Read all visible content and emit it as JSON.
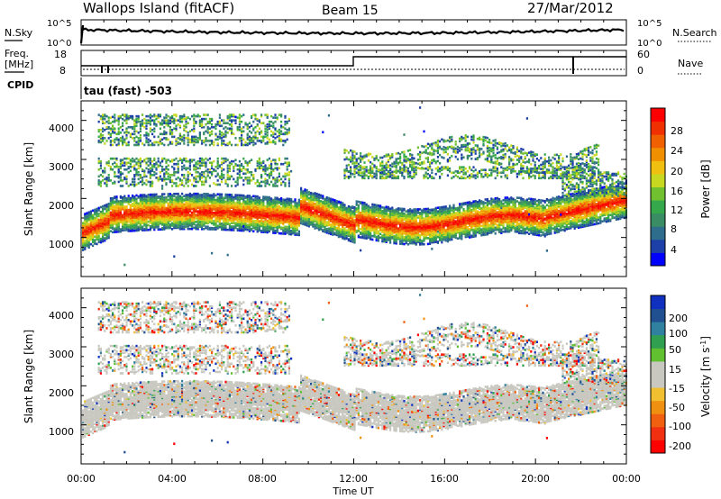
{
  "header": {
    "title": "Wallops Island (fitACF)",
    "beam": "Beam 15",
    "date": "27/Mar/2012"
  },
  "noise_panel": {
    "left_label": "N.Sky",
    "left_ticks": [
      "10^5",
      "10^0"
    ],
    "right_label": "N.Search",
    "right_ticks": [
      "10^5",
      "10^0"
    ]
  },
  "freq_panel": {
    "left_label_line1": "Freq.",
    "left_label_line2": "[MHz]",
    "left_ticks": [
      "18",
      "8"
    ],
    "right_label": "Nave",
    "right_ticks": [
      "60",
      "0"
    ]
  },
  "cpid_panel": {
    "label": "CPID",
    "program": "tau (fast) -503"
  },
  "colors": {
    "power": [
      "#0000ff",
      "#1d3fa8",
      "#2e6e8c",
      "#3a8c64",
      "#35a84c",
      "#70c030",
      "#c8d820",
      "#f0c010",
      "#f09000",
      "#f06000",
      "#f03000",
      "#ff0000"
    ],
    "velocity": [
      "#1030c0",
      "#205090",
      "#3080a0",
      "#30a050",
      "#60c030",
      "#c8c8c0",
      "#c8c8c0",
      "#f0c030",
      "#f09010",
      "#f06010",
      "#f03010",
      "#ff0000"
    ],
    "velocity_gray": "#c8c8c0"
  },
  "chart_data": [
    {
      "type": "heatmap",
      "name": "power",
      "title": "Power [dB]",
      "ylabel": "Slant Range [km]",
      "ylim": [
        0,
        4500
      ],
      "yticks": [
        "1000",
        "2000",
        "3000",
        "4000"
      ],
      "colorbar_ticks": [
        "4",
        "8",
        "12",
        "16",
        "20",
        "24",
        "28"
      ],
      "colorbar_label": "Power [dB]",
      "echo_bands": [
        {
          "range_km": [
            1100,
            1900
          ],
          "value": 26,
          "x_start": 0.0,
          "x_end": 1.0
        },
        {
          "range_km": [
            2300,
            2900
          ],
          "value": 12,
          "x_start": 0.05,
          "x_end": 0.35
        },
        {
          "range_km": [
            3400,
            4300
          ],
          "value": 8,
          "x_start": 0.05,
          "x_end": 0.3
        },
        {
          "range_km": [
            2600,
            3600
          ],
          "value": 14,
          "x_start": 0.5,
          "x_end": 0.95
        }
      ]
    },
    {
      "type": "heatmap",
      "name": "velocity",
      "title": "Velocity [m s-1]",
      "ylabel": "Slant Range [km]",
      "ylim": [
        0,
        4500
      ],
      "yticks": [
        "1000",
        "2000",
        "3000",
        "4000"
      ],
      "colorbar_ticks": [
        "200",
        "100",
        "50",
        "15",
        "-15",
        "-50",
        "-100",
        "-200"
      ],
      "colorbar_label": "Velocity [m s",
      "colorbar_label_sup": "-1",
      "colorbar_label_end": "]"
    }
  ],
  "x_axis": {
    "ticks": [
      "00:00",
      "04:00",
      "08:00",
      "12:00",
      "16:00",
      "20:00",
      "00:00"
    ],
    "label": "Time UT"
  }
}
